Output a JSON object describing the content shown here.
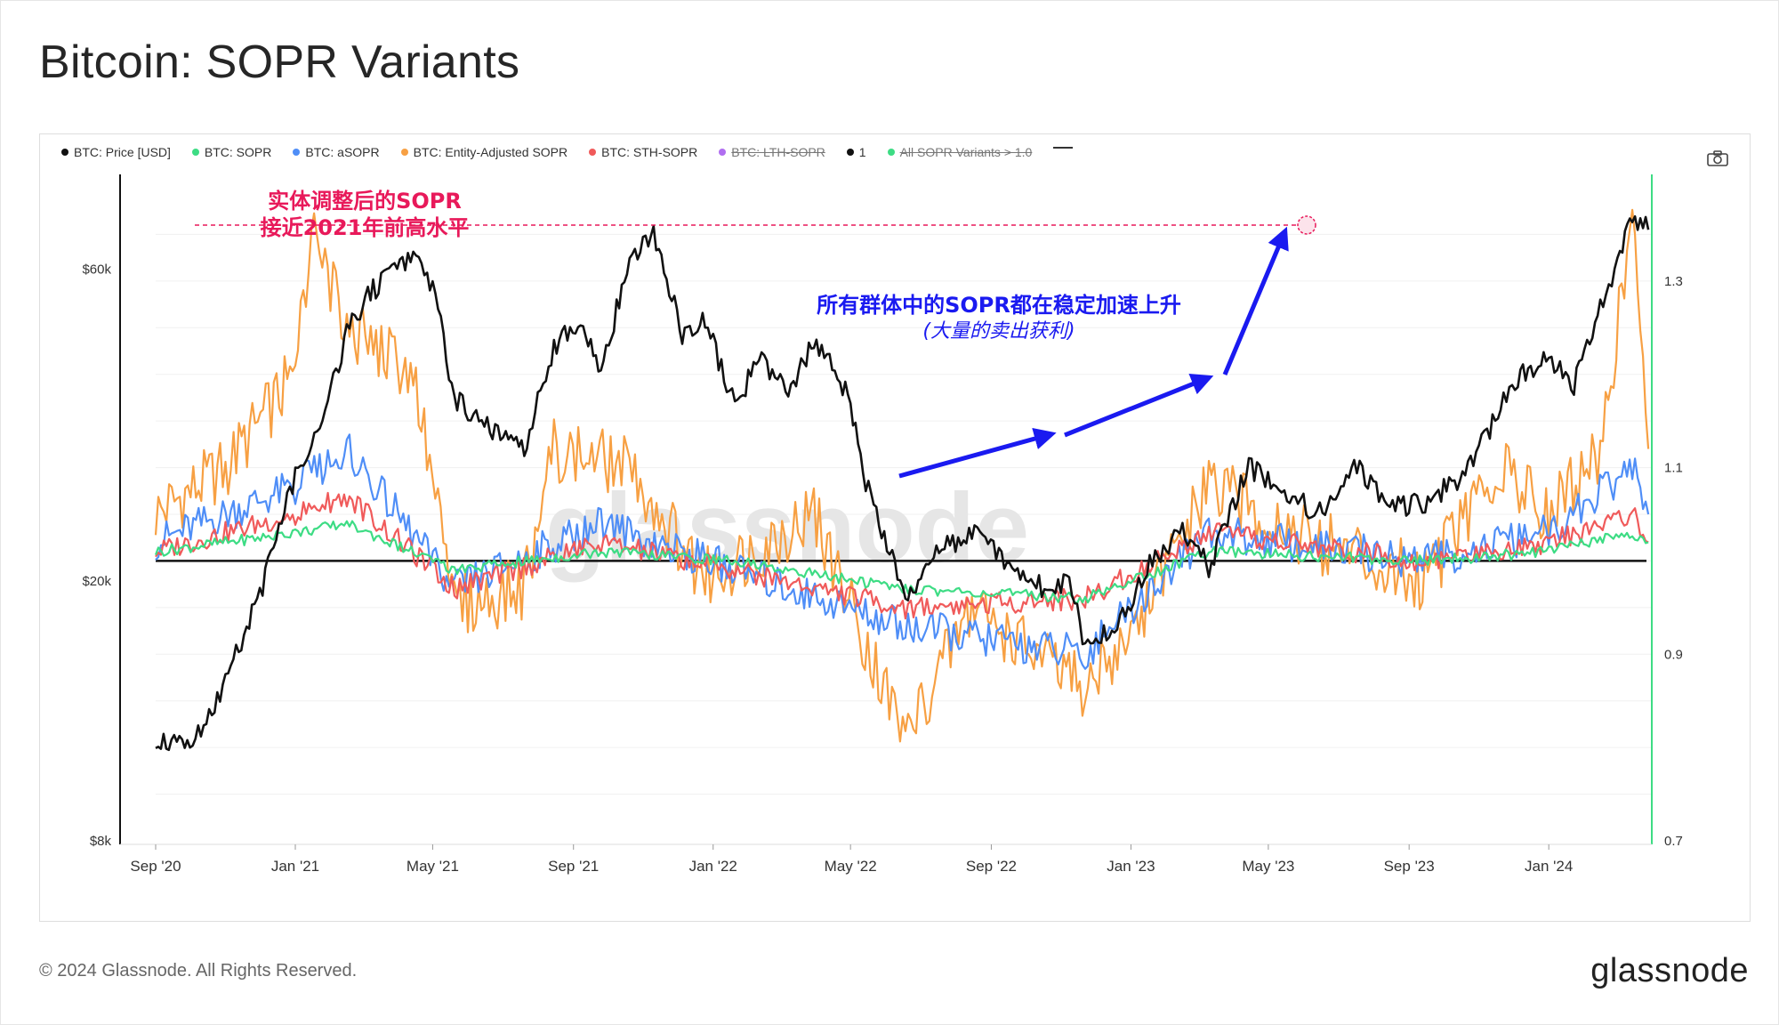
{
  "page": {
    "title": "Bitcoin: SOPR Variants"
  },
  "footer": {
    "copyright": "© 2024 Glassnode. All Rights Reserved.",
    "logo_text": "glassnode"
  },
  "watermark": "glassnode",
  "legend": [
    {
      "label": "BTC: Price [USD]",
      "color": "#111111",
      "active": true
    },
    {
      "label": "BTC: SOPR",
      "color": "#3ddc84",
      "active": true
    },
    {
      "label": "BTC: aSOPR",
      "color": "#4f8ef7",
      "active": true
    },
    {
      "label": "BTC: Entity-Adjusted SOPR",
      "color": "#f7a043",
      "active": true
    },
    {
      "label": "BTC: STH-SOPR",
      "color": "#f05a5a",
      "active": true
    },
    {
      "label": "BTC: LTH-SOPR",
      "color": "#b06ef0",
      "active": false
    },
    {
      "label": "1",
      "color": "#111111",
      "active": true
    },
    {
      "label": "All SOPR Variants > 1.0",
      "color": "#3ddc84",
      "active": false
    }
  ],
  "annotations": {
    "red_line1": "实体调整后的SOPR",
    "red_line2": "接近2021年前高水平",
    "blue_line1": "所有群体中的SOPR都在稳定加速上升",
    "blue_line2": "(大量的卖出获利)"
  },
  "colors": {
    "price": "#111111",
    "sopr": "#3ddc84",
    "asopr": "#4f8ef7",
    "entity": "#f7a043",
    "sth": "#f05a5a",
    "annot_red": "#e8195a",
    "annot_blue": "#1a1af0",
    "right_axis": "#3ddc84"
  },
  "chart_data": {
    "type": "line",
    "title": "Bitcoin: SOPR Variants",
    "x_range": [
      "2020-09-01",
      "2024-03-31"
    ],
    "x_ticks": [
      "Sep '20",
      "Jan '21",
      "May '21",
      "Sep '21",
      "Jan '22",
      "May '22",
      "Sep '22",
      "Jan '23",
      "May '23",
      "Sep '23",
      "Jan '24"
    ],
    "y_left": {
      "scale": "log",
      "range": [
        8000,
        80000
      ],
      "ticks": [
        "$8k",
        "$20k",
        "$60k"
      ],
      "tick_values": [
        8000,
        20000,
        60000
      ]
    },
    "y_right": {
      "scale": "linear",
      "range": [
        0.7,
        1.4
      ],
      "ticks": [
        "0.7",
        "0.9",
        "1.1",
        "1.3"
      ],
      "tick_values": [
        0.7,
        0.9,
        1.1,
        1.3
      ]
    },
    "reference_line": {
      "label": "1",
      "value": 1.0
    },
    "series": [
      {
        "name": "BTC: Price [USD]",
        "axis": "left",
        "x": [
          "2020-09-01",
          "2020-10-01",
          "2020-11-01",
          "2020-12-01",
          "2021-01-01",
          "2021-01-20",
          "2021-02-15",
          "2021-03-10",
          "2021-04-14",
          "2021-05-01",
          "2021-05-20",
          "2021-06-20",
          "2021-07-20",
          "2021-08-15",
          "2021-09-05",
          "2021-09-25",
          "2021-10-20",
          "2021-11-10",
          "2021-12-05",
          "2021-12-25",
          "2022-01-20",
          "2022-02-10",
          "2022-03-10",
          "2022-03-30",
          "2022-05-01",
          "2022-05-12",
          "2022-06-18",
          "2022-07-15",
          "2022-08-15",
          "2022-09-10",
          "2022-10-15",
          "2022-11-08",
          "2022-11-22",
          "2022-12-20",
          "2023-01-15",
          "2023-02-15",
          "2023-03-10",
          "2023-04-14",
          "2023-05-15",
          "2023-06-15",
          "2023-07-15",
          "2023-08-20",
          "2023-09-15",
          "2023-10-20",
          "2023-11-20",
          "2023-12-05",
          "2024-01-01",
          "2024-01-23",
          "2024-02-15",
          "2024-03-01",
          "2024-03-14",
          "2024-03-28"
        ],
        "y": [
          11500,
          11000,
          14000,
          19000,
          29000,
          33000,
          48000,
          56000,
          62000,
          57000,
          38000,
          34000,
          31500,
          46000,
          50000,
          42000,
          62000,
          68000,
          48000,
          50000,
          37000,
          44000,
          39000,
          47000,
          38000,
          29000,
          19000,
          22000,
          24000,
          21500,
          19500,
          20000,
          16000,
          16800,
          21000,
          24000,
          21000,
          30000,
          27000,
          25500,
          30000,
          26000,
          26500,
          29000,
          37000,
          41000,
          44000,
          40000,
          52000,
          62000,
          72000,
          69000
        ]
      },
      {
        "name": "BTC: SOPR",
        "axis": "right",
        "x": [
          "2020-09-01",
          "2021-01-01",
          "2021-02-15",
          "2021-05-20",
          "2021-09-25",
          "2022-01-20",
          "2022-06-18",
          "2022-11-22",
          "2023-03-10",
          "2023-09-15",
          "2024-01-01",
          "2024-03-14",
          "2024-03-28"
        ],
        "y": [
          1.01,
          1.03,
          1.04,
          0.99,
          1.01,
          1.0,
          0.97,
          0.96,
          1.01,
          1.0,
          1.01,
          1.03,
          1.02
        ]
      },
      {
        "name": "BTC: aSOPR",
        "axis": "right",
        "x": [
          "2020-09-01",
          "2021-01-01",
          "2021-02-15",
          "2021-05-20",
          "2021-09-25",
          "2022-01-20",
          "2022-06-18",
          "2022-11-22",
          "2023-03-10",
          "2023-09-15",
          "2024-01-01",
          "2024-03-14",
          "2024-03-28"
        ],
        "y": [
          1.02,
          1.08,
          1.12,
          0.97,
          1.04,
          0.99,
          0.93,
          0.9,
          1.03,
          1.0,
          1.03,
          1.1,
          1.05
        ]
      },
      {
        "name": "BTC: Entity-Adjusted SOPR",
        "axis": "right",
        "x": [
          "2020-09-01",
          "2020-11-01",
          "2021-01-01",
          "2021-01-15",
          "2021-02-15",
          "2021-04-14",
          "2021-05-20",
          "2021-07-20",
          "2021-08-15",
          "2021-10-20",
          "2021-12-25",
          "2022-03-30",
          "2022-06-18",
          "2022-08-15",
          "2022-11-22",
          "2023-01-15",
          "2023-03-10",
          "2023-06-15",
          "2023-09-15",
          "2023-11-20",
          "2024-01-01",
          "2024-02-15",
          "2024-03-14",
          "2024-03-28"
        ],
        "y": [
          1.05,
          1.1,
          1.2,
          1.35,
          1.25,
          1.2,
          0.95,
          0.97,
          1.12,
          1.1,
          0.98,
          1.05,
          0.81,
          0.95,
          0.86,
          0.95,
          1.08,
          1.02,
          0.98,
          1.1,
          1.05,
          1.12,
          1.36,
          1.12
        ]
      },
      {
        "name": "BTC: STH-SOPR",
        "axis": "right",
        "x": [
          "2020-09-01",
          "2021-01-01",
          "2021-02-15",
          "2021-05-20",
          "2021-09-25",
          "2022-01-20",
          "2022-06-18",
          "2022-11-22",
          "2023-03-10",
          "2023-09-15",
          "2024-01-01",
          "2024-03-14",
          "2024-03-28"
        ],
        "y": [
          1.01,
          1.05,
          1.07,
          0.97,
          1.02,
          0.99,
          0.95,
          0.96,
          1.03,
          1.0,
          1.02,
          1.05,
          1.02
        ]
      }
    ]
  }
}
